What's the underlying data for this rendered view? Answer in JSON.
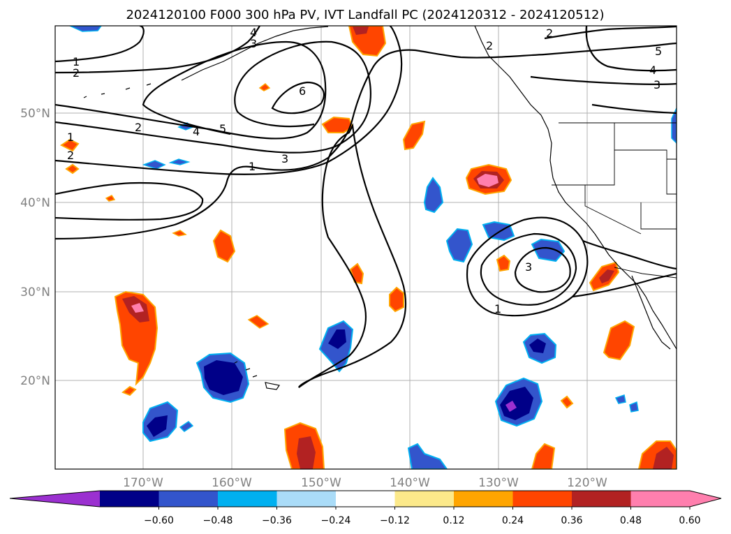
{
  "title": "2024120100 F000 300 hPa PV, IVT Landfall PC (2024120312 - 2024120512)",
  "lat_labels": [
    "50°N",
    "40°N",
    "30°N",
    "20°N"
  ],
  "lon_labels": [
    "170°W",
    "160°W",
    "150°W",
    "140°W",
    "130°W",
    "120°W"
  ],
  "contour_labels": [
    "1",
    "2",
    "1",
    "2",
    "3",
    "4",
    "5",
    "6",
    "1",
    "2",
    "3",
    "4",
    "2",
    "5",
    "4",
    "3",
    "1",
    "3",
    "2"
  ],
  "colorbar": {
    "ticks": [
      "−0.60",
      "−0.48",
      "−0.36",
      "−0.24",
      "−0.12",
      "0.12",
      "0.24",
      "0.36",
      "0.48",
      "0.60"
    ],
    "colors": [
      "#9b30d0",
      "#000088",
      "#3355cc",
      "#00b0f0",
      "#aadcf8",
      "#ffffff",
      "#fce98a",
      "#ffa500",
      "#ff4500",
      "#b22222",
      "#ff7fae",
      "#ff7fae"
    ],
    "extend": "both"
  },
  "chart_data": {
    "type": "heatmap",
    "title": "2024120100 F000 300 hPa PV, IVT Landfall PC (2024120312 - 2024120512)",
    "variable_contours": "300 hPa PV",
    "variable_filled": "IVT Landfall PC",
    "contour_levels": [
      1,
      2,
      3,
      4,
      5,
      6
    ],
    "fill_levels": [
      -0.6,
      -0.48,
      -0.36,
      -0.24,
      -0.12,
      0.12,
      0.24,
      0.36,
      0.48,
      0.6
    ],
    "lon_range": [
      "~180°W",
      "~110°W"
    ],
    "lat_range": [
      "~10°N",
      "~60°N"
    ],
    "grid": true
  }
}
